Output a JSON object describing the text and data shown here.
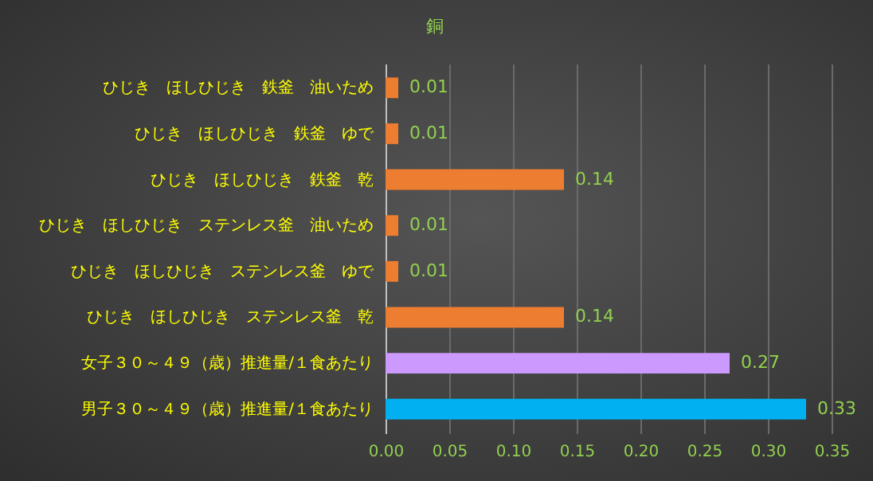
{
  "chart_data": {
    "type": "bar",
    "orientation": "horizontal",
    "title": "銅",
    "categories": [
      "ひじき　ほしひじき　鉄釜　油いため",
      "ひじき　ほしひじき　鉄釜　ゆで",
      "ひじき　ほしひじき　鉄釜　乾",
      "ひじき　ほしひじき　ステンレス釜　油いため",
      "ひじき　ほしひじき　ステンレス釜　ゆで",
      "ひじき　ほしひじき　ステンレス釜　乾",
      "女子３０～４９（歳）推進量/１食あたり",
      "男子３０～４９（歳）推進量/１食あたり"
    ],
    "values": [
      0.01,
      0.01,
      0.14,
      0.01,
      0.01,
      0.14,
      0.27,
      0.33
    ],
    "colors": [
      "#ed7d31",
      "#ed7d31",
      "#ed7d31",
      "#ed7d31",
      "#ed7d31",
      "#ed7d31",
      "#cc99ff",
      "#00b0f0"
    ],
    "xlim": [
      0,
      0.35
    ],
    "xticks": [
      {
        "value": 0,
        "label": "0.00"
      },
      {
        "value": 0.05,
        "label": "0.05"
      },
      {
        "value": 0.1,
        "label": "0.10"
      },
      {
        "value": 0.15,
        "label": "0.15"
      },
      {
        "value": 0.2,
        "label": "0.20"
      },
      {
        "value": 0.25,
        "label": "0.25"
      },
      {
        "value": 0.3,
        "label": "0.30"
      },
      {
        "value": 0.35,
        "label": "0.35"
      }
    ],
    "grid": "x",
    "data_labels": true
  }
}
